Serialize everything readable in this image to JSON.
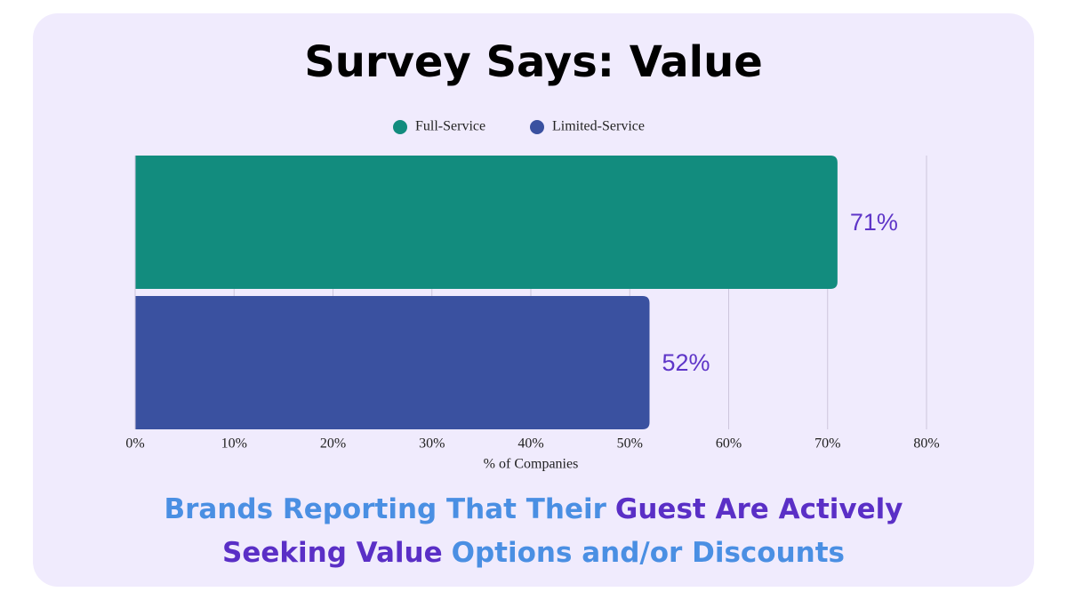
{
  "chart_data": {
    "type": "bar",
    "orientation": "horizontal",
    "title": "Survey Says: Value",
    "subtitle": [
      [
        {
          "text": "Brands Reporting That Their",
          "color": "#4a8fe3"
        },
        {
          "text": "Guest Are Actively",
          "color": "#5a2fc6"
        }
      ],
      [
        {
          "text": "Seeking Value",
          "color": "#5a2fc6"
        },
        {
          "text": "Options and/or Discounts",
          "color": "#4a8fe3"
        }
      ]
    ],
    "categories": [
      null
    ],
    "series": [
      {
        "name": "Full-Service",
        "color": "#128c7e",
        "values": [
          71
        ],
        "value_labels": [
          "71%"
        ]
      },
      {
        "name": "Limited-Service",
        "color": "#3a51a0",
        "values": [
          52
        ],
        "value_labels": [
          "52%"
        ]
      }
    ],
    "value_label_color": "#5e35c8",
    "xlabel": "% of Companies",
    "xlim": [
      0,
      80
    ],
    "xticks": [
      {
        "value": 0,
        "label": "0%"
      },
      {
        "value": 10,
        "label": "10%"
      },
      {
        "value": 20,
        "label": "20%"
      },
      {
        "value": 30,
        "label": "30%"
      },
      {
        "value": 40,
        "label": "40%"
      },
      {
        "value": 50,
        "label": "50%"
      },
      {
        "value": 60,
        "label": "60%"
      },
      {
        "value": 70,
        "label": "70%"
      },
      {
        "value": 80,
        "label": "80%"
      }
    ],
    "grid": true,
    "legend": "top"
  }
}
